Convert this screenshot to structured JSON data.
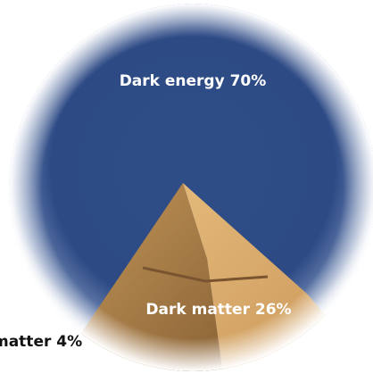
{
  "labels": [
    "Dark energy 70%",
    "Dark matter 26%",
    "matter 4%"
  ]
}
